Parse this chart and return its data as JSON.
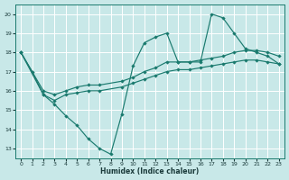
{
  "bg_color": "#c8e8e8",
  "grid_color": "#b0d8d8",
  "line_color": "#1a7a6e",
  "xlabel": "Humidex (Indice chaleur)",
  "xlim": [
    -0.5,
    23.5
  ],
  "ylim": [
    12.5,
    20.5
  ],
  "yticks": [
    13,
    14,
    15,
    16,
    17,
    18,
    19,
    20
  ],
  "xticks": [
    0,
    1,
    2,
    3,
    4,
    5,
    6,
    7,
    8,
    9,
    10,
    11,
    12,
    13,
    14,
    15,
    16,
    17,
    18,
    19,
    20,
    21,
    22,
    23
  ],
  "line1_x": [
    0,
    1,
    2,
    3,
    4,
    5,
    6,
    7,
    8,
    9,
    10,
    11,
    12,
    13,
    14,
    15,
    16,
    17,
    18,
    19,
    20,
    21,
    22,
    23
  ],
  "line1_y": [
    18.0,
    17.0,
    15.8,
    15.3,
    14.7,
    14.2,
    13.5,
    13.0,
    12.7,
    14.8,
    17.3,
    18.5,
    18.8,
    19.0,
    17.5,
    17.5,
    17.5,
    20.0,
    19.8,
    19.0,
    18.2,
    18.0,
    17.8,
    17.4
  ],
  "line2_x": [
    0,
    2,
    3,
    4,
    5,
    6,
    7,
    9,
    10,
    11,
    12,
    13,
    14,
    15,
    16,
    17,
    18,
    19,
    20,
    21,
    22,
    23
  ],
  "line2_y": [
    18.0,
    16.0,
    15.8,
    16.0,
    16.2,
    16.3,
    16.3,
    16.5,
    16.7,
    17.0,
    17.2,
    17.5,
    17.5,
    17.5,
    17.6,
    17.7,
    17.8,
    18.0,
    18.1,
    18.1,
    18.0,
    17.8
  ],
  "line3_x": [
    0,
    2,
    3,
    4,
    5,
    6,
    7,
    9,
    10,
    11,
    12,
    13,
    14,
    15,
    16,
    17,
    18,
    19,
    20,
    21,
    22,
    23
  ],
  "line3_y": [
    18.0,
    15.8,
    15.5,
    15.8,
    15.9,
    16.0,
    16.0,
    16.2,
    16.4,
    16.6,
    16.8,
    17.0,
    17.1,
    17.1,
    17.2,
    17.3,
    17.4,
    17.5,
    17.6,
    17.6,
    17.5,
    17.4
  ]
}
